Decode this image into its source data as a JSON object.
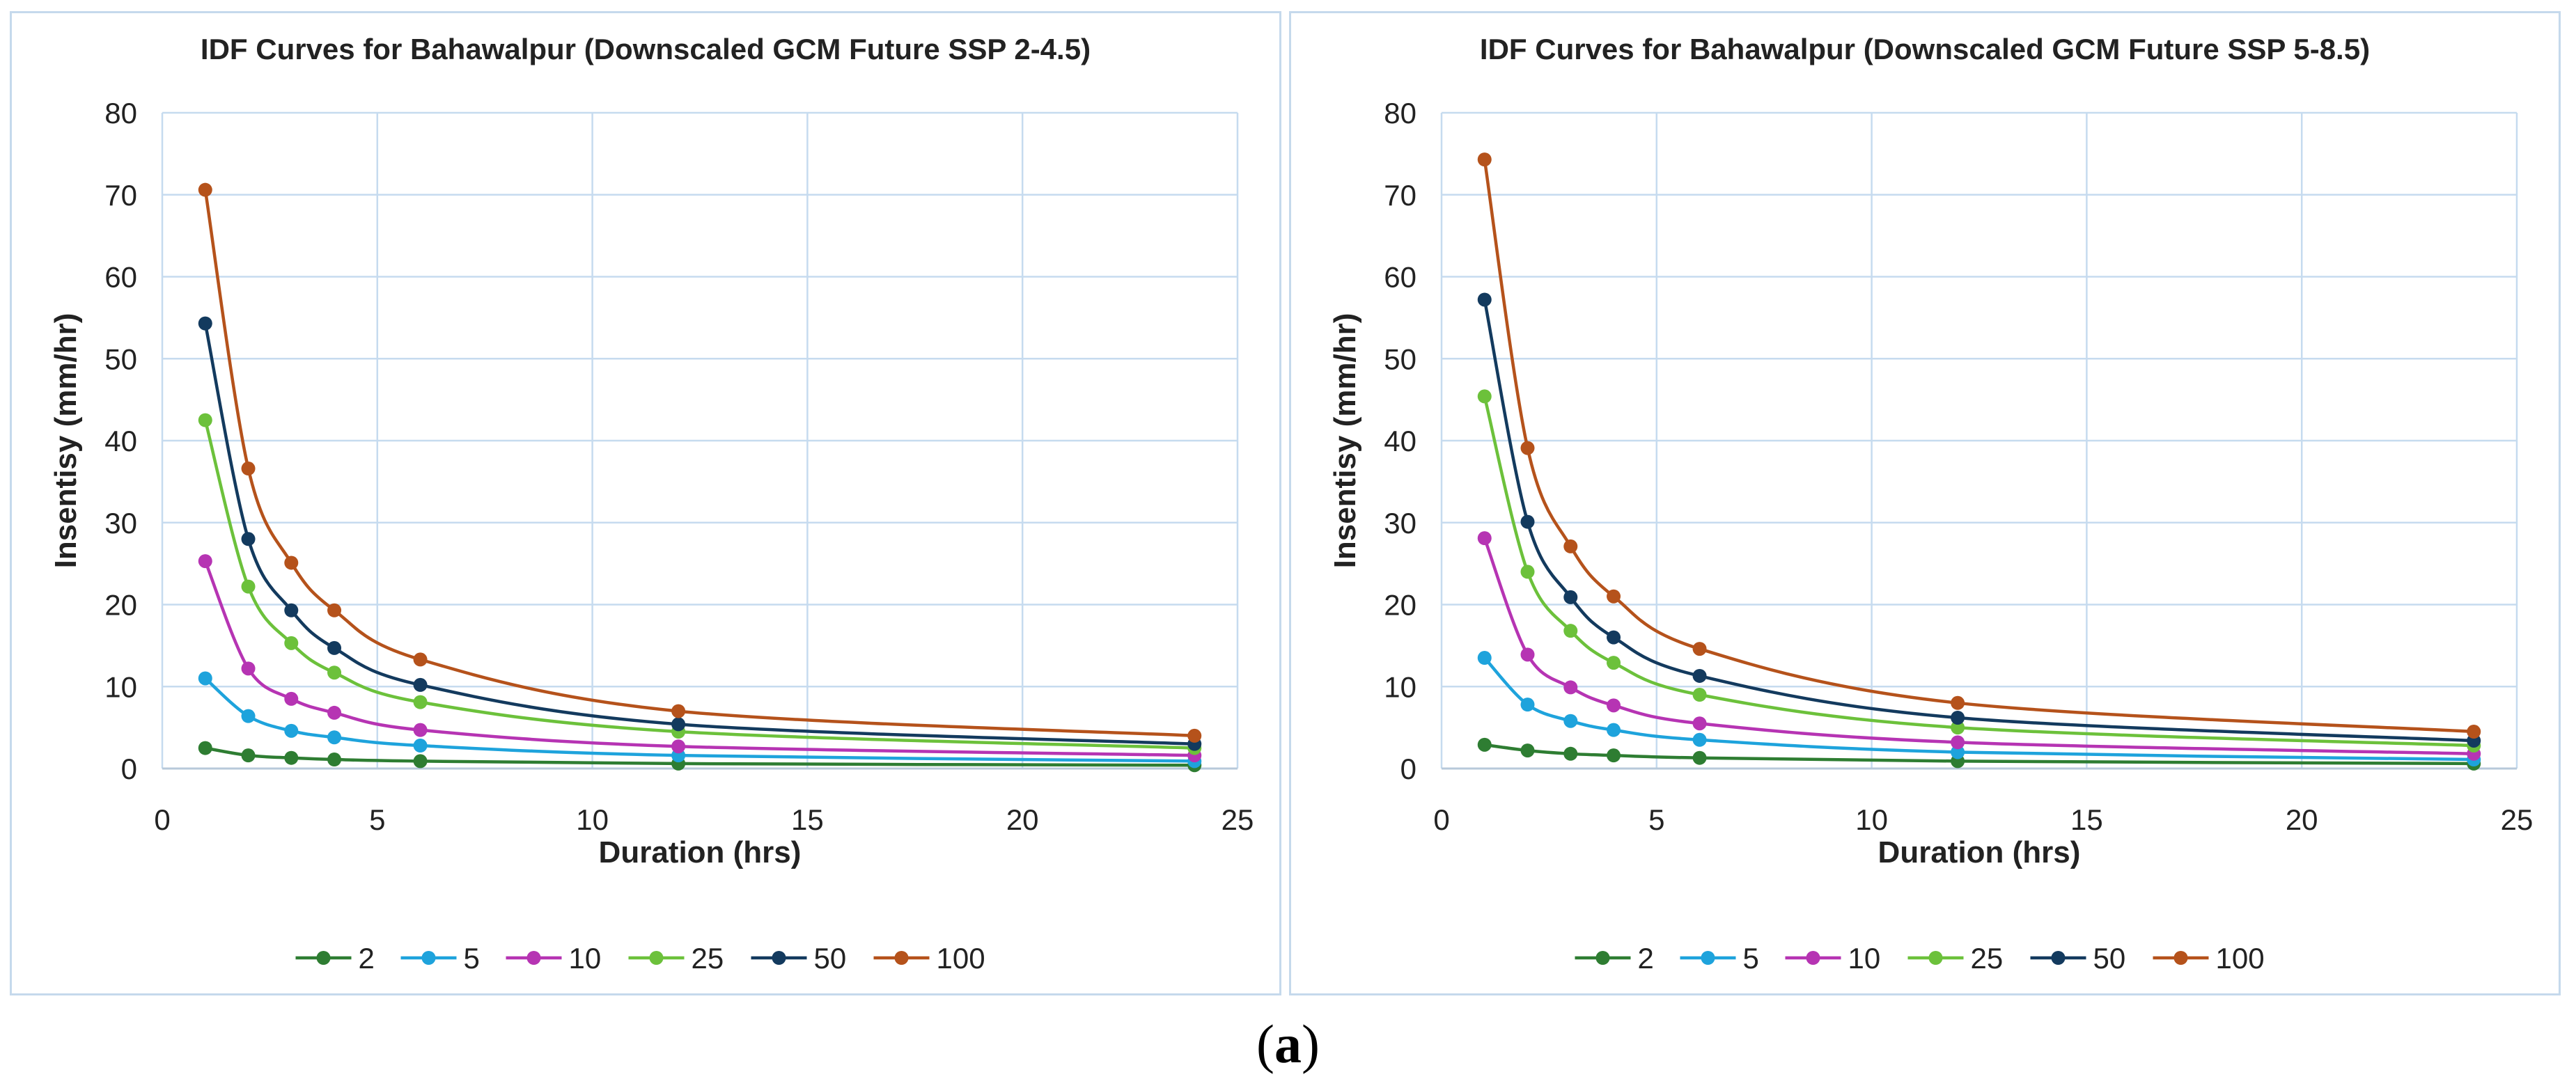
{
  "caption": {
    "open": "(",
    "letter": "a",
    "close": ")"
  },
  "chart_data": [
    {
      "type": "line",
      "title": "IDF Curves for Bahawalpur  (Downscaled  GCM Future SSP 2-4.5)",
      "xlabel": "Duration (hrs)",
      "ylabel": "Insentisy (mm/hr)",
      "xlim": [
        0,
        25
      ],
      "ylim": [
        0,
        80
      ],
      "xticks": [
        0,
        5,
        10,
        15,
        20,
        25
      ],
      "yticks": [
        0,
        10,
        20,
        30,
        40,
        50,
        60,
        70,
        80
      ],
      "grid": true,
      "legend_position": "bottom",
      "x": [
        1,
        2,
        3,
        4,
        6,
        12,
        24
      ],
      "series": [
        {
          "name": "2",
          "color": "#2e7d32",
          "values": [
            2.5,
            1.6,
            1.3,
            1.1,
            0.9,
            0.6,
            0.4
          ]
        },
        {
          "name": "5",
          "color": "#1ea3dc",
          "values": [
            11.0,
            6.4,
            4.6,
            3.8,
            2.8,
            1.6,
            0.9
          ]
        },
        {
          "name": "10",
          "color": "#b634b3",
          "values": [
            25.3,
            12.2,
            8.5,
            6.8,
            4.7,
            2.7,
            1.6
          ]
        },
        {
          "name": "25",
          "color": "#6cc13b",
          "values": [
            42.5,
            22.2,
            15.3,
            11.7,
            8.1,
            4.5,
            2.5
          ]
        },
        {
          "name": "50",
          "color": "#133a5e",
          "values": [
            54.3,
            28.0,
            19.3,
            14.7,
            10.2,
            5.4,
            3.0
          ]
        },
        {
          "name": "100",
          "color": "#b5521b",
          "values": [
            70.6,
            36.6,
            25.1,
            19.3,
            13.3,
            7.0,
            4.0
          ]
        }
      ]
    },
    {
      "type": "line",
      "title": "IDF Curves for Bahawalpur  (Downscaled  GCM Future SSP 5-8.5)",
      "xlabel": "Duration (hrs)",
      "ylabel": "Insentisy (mm/hr)",
      "xlim": [
        0,
        25
      ],
      "ylim": [
        0,
        80
      ],
      "xticks": [
        0,
        5,
        10,
        15,
        20,
        25
      ],
      "yticks": [
        0,
        10,
        20,
        30,
        40,
        50,
        60,
        70,
        80
      ],
      "grid": true,
      "legend_position": "bottom",
      "x": [
        1,
        2,
        3,
        4,
        6,
        12,
        24
      ],
      "series": [
        {
          "name": "2",
          "color": "#2e7d32",
          "values": [
            2.9,
            2.2,
            1.8,
            1.6,
            1.3,
            0.9,
            0.6
          ]
        },
        {
          "name": "5",
          "color": "#1ea3dc",
          "values": [
            13.5,
            7.8,
            5.8,
            4.7,
            3.5,
            2.0,
            1.1
          ]
        },
        {
          "name": "10",
          "color": "#b634b3",
          "values": [
            28.1,
            13.9,
            9.9,
            7.7,
            5.5,
            3.2,
            1.8
          ]
        },
        {
          "name": "25",
          "color": "#6cc13b",
          "values": [
            45.4,
            24.0,
            16.8,
            12.9,
            9.0,
            5.0,
            2.8
          ]
        },
        {
          "name": "50",
          "color": "#133a5e",
          "values": [
            57.2,
            30.1,
            20.9,
            16.0,
            11.3,
            6.2,
            3.4
          ]
        },
        {
          "name": "100",
          "color": "#b5521b",
          "values": [
            74.3,
            39.1,
            27.1,
            21.0,
            14.6,
            8.0,
            4.5
          ]
        }
      ]
    }
  ]
}
